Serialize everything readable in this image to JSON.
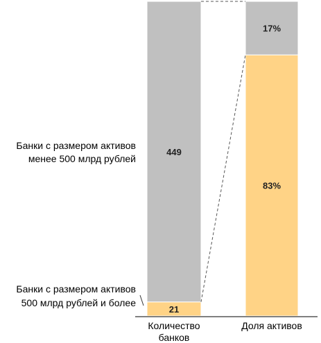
{
  "chart_data": {
    "type": "bar",
    "stacked": true,
    "categories": [
      "Количество банков",
      "Доля активов"
    ],
    "category_label_lines": [
      [
        "Количество",
        "банков"
      ],
      [
        "Доля активов"
      ]
    ],
    "series": [
      {
        "name": "Банки с размером активов 500 млрд рублей и более",
        "name_lines": [
          "Банки с размером активов",
          "500 млрд рублей и более"
        ],
        "values": [
          21,
          83
        ],
        "labels": [
          "21",
          "83%"
        ],
        "color": "#FFD386"
      },
      {
        "name": "Банки с размером активов менее 500 млрд рублей",
        "name_lines": [
          "Банки с размером активов",
          "менее 500 млрд рублей"
        ],
        "values": [
          449,
          17
        ],
        "labels": [
          "449",
          "17%"
        ],
        "color": "#C0C0C0"
      }
    ],
    "normalized": true,
    "connector_style": "dashed",
    "label_color": "#222222",
    "axis_color": "#000000"
  }
}
